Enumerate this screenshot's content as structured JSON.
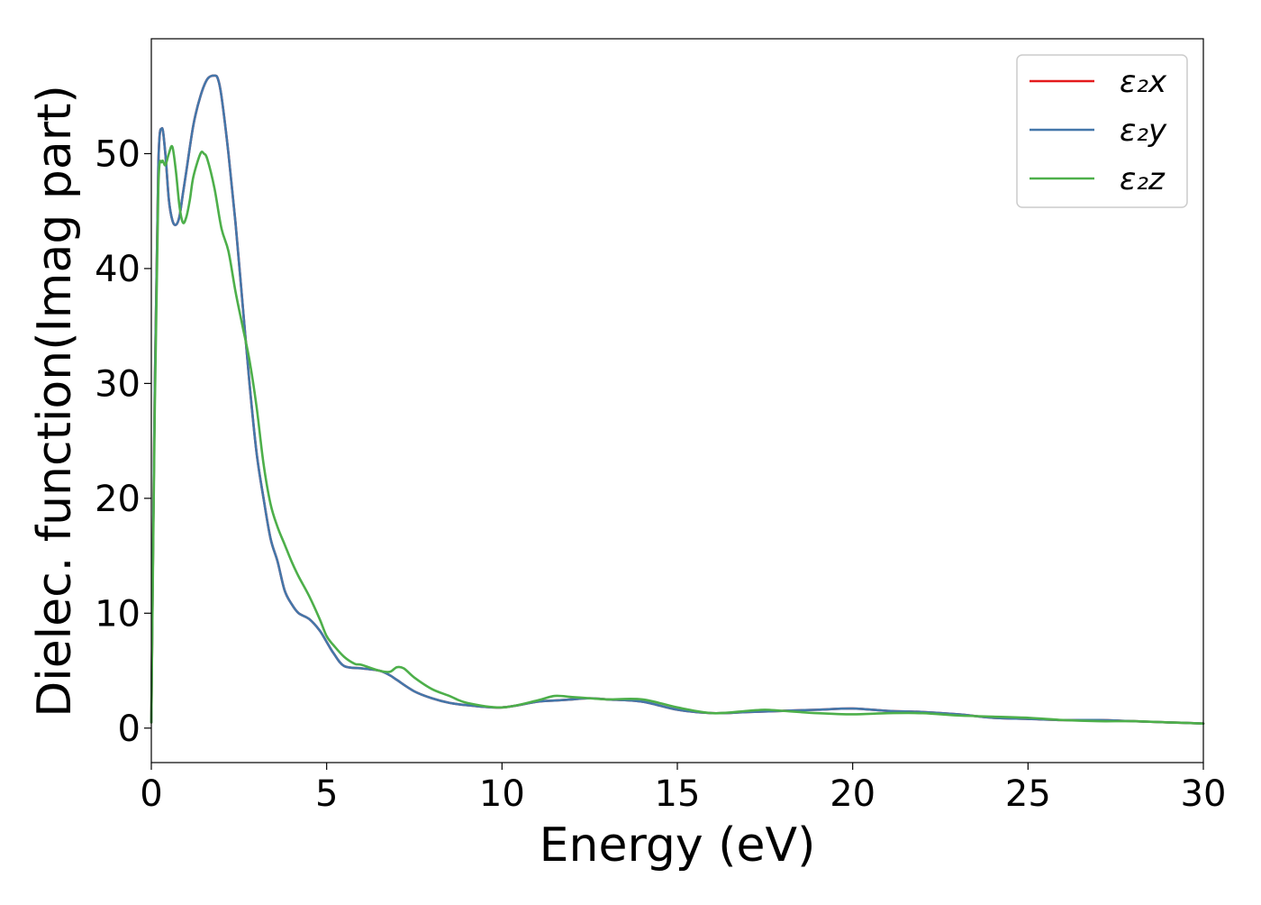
{
  "chart_data": {
    "type": "line",
    "title": "",
    "xlabel": "Energy (eV)",
    "ylabel": "Dielec. function(Imag part)",
    "xlim": [
      0,
      30
    ],
    "ylim": [
      -3,
      60
    ],
    "xticks": [
      0,
      5,
      10,
      15,
      20,
      25,
      30
    ],
    "yticks": [
      0,
      10,
      20,
      30,
      40,
      50
    ],
    "grid": false,
    "legend_position": "top-right",
    "series": [
      {
        "name": "ε₂x",
        "color": "#e41a1c",
        "x": [
          0,
          0.1,
          0.2,
          0.3,
          0.4,
          0.5,
          0.6,
          0.7,
          0.8,
          0.9,
          1.0,
          1.2,
          1.4,
          1.6,
          1.8,
          1.9,
          2.0,
          2.2,
          2.4,
          2.6,
          2.8,
          3.0,
          3.2,
          3.4,
          3.6,
          3.8,
          4.0,
          4.2,
          4.5,
          4.8,
          5.0,
          5.2,
          5.5,
          6.0,
          6.5,
          6.8,
          7.0,
          7.5,
          8.0,
          8.5,
          9.0,
          10.0,
          11.0,
          11.5,
          12.0,
          12.5,
          13.0,
          14.0,
          15.0,
          16.0,
          17.0,
          18.0,
          19.0,
          20.0,
          21.0,
          22.0,
          23.0,
          24.0,
          25.0,
          26.0,
          27.0,
          28.0,
          29.0,
          30.0
        ],
        "y": [
          0.5,
          30,
          49,
          52.2,
          50,
          46,
          44.2,
          43.8,
          44.5,
          46.5,
          48.5,
          52.5,
          55,
          56.5,
          56.8,
          56.5,
          55,
          50,
          44,
          37,
          30,
          24,
          20,
          16.5,
          14.5,
          12,
          10.8,
          10,
          9.5,
          8.5,
          7.5,
          6.5,
          5.4,
          5.2,
          5.0,
          4.6,
          4.2,
          3.2,
          2.6,
          2.2,
          2.0,
          1.8,
          2.3,
          2.4,
          2.5,
          2.6,
          2.5,
          2.3,
          1.6,
          1.3,
          1.4,
          1.5,
          1.6,
          1.7,
          1.5,
          1.4,
          1.2,
          0.9,
          0.8,
          0.7,
          0.7,
          0.6,
          0.5,
          0.4
        ]
      },
      {
        "name": "ε₂y",
        "color": "#4477aa",
        "x": [
          0,
          0.1,
          0.2,
          0.3,
          0.4,
          0.5,
          0.6,
          0.7,
          0.8,
          0.9,
          1.0,
          1.2,
          1.4,
          1.6,
          1.8,
          1.9,
          2.0,
          2.2,
          2.4,
          2.6,
          2.8,
          3.0,
          3.2,
          3.4,
          3.6,
          3.8,
          4.0,
          4.2,
          4.5,
          4.8,
          5.0,
          5.2,
          5.5,
          6.0,
          6.5,
          6.8,
          7.0,
          7.5,
          8.0,
          8.5,
          9.0,
          10.0,
          11.0,
          11.5,
          12.0,
          12.5,
          13.0,
          14.0,
          15.0,
          16.0,
          17.0,
          18.0,
          19.0,
          20.0,
          21.0,
          22.0,
          23.0,
          24.0,
          25.0,
          26.0,
          27.0,
          28.0,
          29.0,
          30.0
        ],
        "y": [
          0.5,
          30,
          49,
          52.2,
          50,
          46,
          44.2,
          43.8,
          44.5,
          46.5,
          48.5,
          52.5,
          55,
          56.5,
          56.8,
          56.5,
          55,
          50,
          44,
          37,
          30,
          24,
          20,
          16.5,
          14.5,
          12,
          10.8,
          10,
          9.5,
          8.5,
          7.5,
          6.5,
          5.4,
          5.2,
          5.0,
          4.6,
          4.2,
          3.2,
          2.6,
          2.2,
          2.0,
          1.8,
          2.3,
          2.4,
          2.5,
          2.6,
          2.5,
          2.3,
          1.6,
          1.3,
          1.4,
          1.5,
          1.6,
          1.7,
          1.5,
          1.4,
          1.2,
          0.9,
          0.8,
          0.7,
          0.7,
          0.6,
          0.5,
          0.4
        ]
      },
      {
        "name": "ε₂z",
        "color": "#4daf4a",
        "x": [
          0,
          0.1,
          0.2,
          0.3,
          0.4,
          0.5,
          0.6,
          0.7,
          0.8,
          0.9,
          1.0,
          1.1,
          1.2,
          1.4,
          1.5,
          1.6,
          1.8,
          2.0,
          2.2,
          2.4,
          2.6,
          2.8,
          3.0,
          3.2,
          3.4,
          3.6,
          3.8,
          4.0,
          4.2,
          4.5,
          4.8,
          5.0,
          5.2,
          5.5,
          5.8,
          6.0,
          6.5,
          6.8,
          7.0,
          7.2,
          7.5,
          8.0,
          8.5,
          9.0,
          10.0,
          11.0,
          11.5,
          12.0,
          12.5,
          13.0,
          14.0,
          15.0,
          16.0,
          17.0,
          17.5,
          18.0,
          19.0,
          20.0,
          21.0,
          22.0,
          23.0,
          24.0,
          25.0,
          26.0,
          27.0,
          28.0,
          29.0,
          30.0
        ],
        "y": [
          0.5,
          28,
          47,
          49.3,
          49,
          50,
          50.6,
          48.5,
          45.5,
          44,
          44.5,
          46,
          48,
          50,
          50,
          49.5,
          47,
          43.5,
          41.5,
          38,
          35,
          32,
          28,
          23,
          19.5,
          17.5,
          16,
          14.5,
          13.2,
          11.5,
          9.5,
          8,
          7.2,
          6.2,
          5.6,
          5.5,
          5.0,
          4.9,
          5.3,
          5.2,
          4.4,
          3.4,
          2.8,
          2.2,
          1.8,
          2.4,
          2.8,
          2.7,
          2.6,
          2.5,
          2.5,
          1.8,
          1.3,
          1.5,
          1.6,
          1.5,
          1.3,
          1.2,
          1.3,
          1.3,
          1.1,
          1.0,
          0.9,
          0.7,
          0.6,
          0.6,
          0.5,
          0.4
        ]
      }
    ]
  }
}
